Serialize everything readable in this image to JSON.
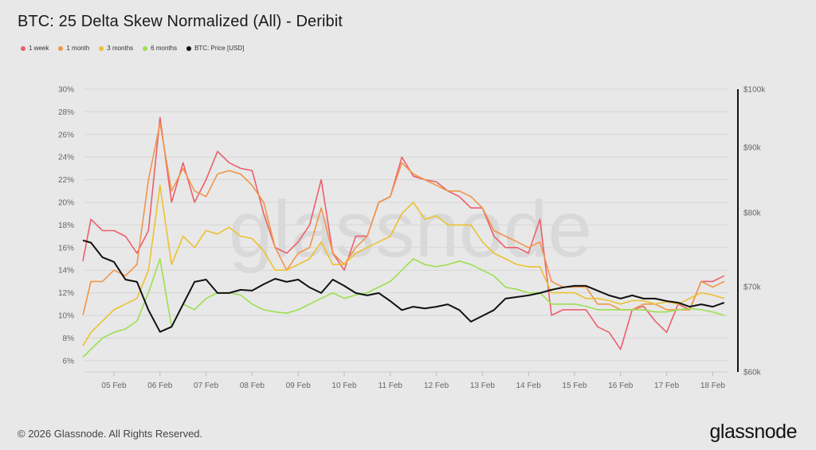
{
  "title": "BTC: 25 Delta Skew Normalized (All) - Deribit",
  "footer": "© 2026 Glassnode. All Rights Reserved.",
  "brand": "glassnode",
  "watermark": "glassnode",
  "chart_data": {
    "type": "line",
    "title": "BTC: 25 Delta Skew Normalized (All) - Deribit",
    "legend_position": "top-left",
    "grid": true,
    "x_tick_labels": [
      "05 Feb",
      "06 Feb",
      "07 Feb",
      "08 Feb",
      "09 Feb",
      "10 Feb",
      "11 Feb",
      "12 Feb",
      "13 Feb",
      "14 Feb",
      "15 Feb",
      "16 Feb",
      "17 Feb",
      "18 Feb"
    ],
    "y_left": {
      "ylim": [
        5,
        30
      ],
      "ticks": [
        6,
        8,
        10,
        12,
        14,
        16,
        18,
        20,
        22,
        24,
        26,
        28,
        30
      ],
      "tick_labels": [
        "6%",
        "8%",
        "10%",
        "12%",
        "14%",
        "16%",
        "18%",
        "20%",
        "22%",
        "24%",
        "26%",
        "28%",
        "30%"
      ]
    },
    "y_right": {
      "scale": "log",
      "ylim": [
        60,
        100
      ],
      "ticks": [
        60,
        70,
        80,
        90,
        100
      ],
      "tick_labels": [
        "$60k",
        "$70k",
        "$80k",
        "$90k",
        "$100k"
      ]
    },
    "x": [
      "02-04 06:00",
      "02-04 12:00",
      "02-04 18:00",
      "02-05 00:00",
      "02-05 06:00",
      "02-05 12:00",
      "02-05 18:00",
      "02-06 00:00",
      "02-06 06:00",
      "02-06 12:00",
      "02-06 18:00",
      "02-07 00:00",
      "02-07 06:00",
      "02-07 12:00",
      "02-07 18:00",
      "02-08 00:00",
      "02-08 06:00",
      "02-08 12:00",
      "02-08 18:00",
      "02-09 00:00",
      "02-09 06:00",
      "02-09 12:00",
      "02-09 18:00",
      "02-10 00:00",
      "02-10 06:00",
      "02-10 12:00",
      "02-10 18:00",
      "02-11 00:00",
      "02-11 06:00",
      "02-11 12:00",
      "02-11 18:00",
      "02-12 00:00",
      "02-12 06:00",
      "02-12 12:00",
      "02-12 18:00",
      "02-13 00:00",
      "02-13 06:00",
      "02-13 12:00",
      "02-13 18:00",
      "02-14 00:00",
      "02-14 06:00",
      "02-14 12:00",
      "02-14 18:00",
      "02-15 00:00",
      "02-15 06:00",
      "02-15 12:00",
      "02-15 18:00",
      "02-16 00:00",
      "02-16 06:00",
      "02-16 12:00",
      "02-16 18:00",
      "02-17 00:00",
      "02-17 06:00",
      "02-17 12:00",
      "02-17 18:00",
      "02-18 00:00",
      "02-18 06:00"
    ],
    "series": [
      {
        "name": "1 week",
        "color": "#ec5f6e",
        "axis": "left",
        "values": [
          14.8,
          18.5,
          17.5,
          17.5,
          17.0,
          15.5,
          17.5,
          27.5,
          20.0,
          23.5,
          20.0,
          22.0,
          24.5,
          23.5,
          23.0,
          22.8,
          19.0,
          16.0,
          15.5,
          16.5,
          18.0,
          22.0,
          15.5,
          14.0,
          17.0,
          17.0,
          20.0,
          20.5,
          24.0,
          22.3,
          22.0,
          21.8,
          21.0,
          20.5,
          19.5,
          19.5,
          17.0,
          16.0,
          16.0,
          15.5,
          18.5,
          10.0,
          10.5,
          10.5,
          10.5,
          9.0,
          8.5,
          7.0,
          10.5,
          10.8,
          9.5,
          8.5,
          11.0,
          10.5,
          13.0,
          13.0,
          13.5
        ]
      },
      {
        "name": "1 month",
        "color": "#f0954a",
        "axis": "left",
        "values": [
          10.0,
          13.0,
          13.0,
          14.0,
          13.5,
          14.5,
          22.0,
          27.0,
          21.0,
          23.0,
          21.0,
          20.5,
          22.5,
          22.8,
          22.5,
          21.5,
          20.0,
          16.0,
          14.0,
          15.5,
          16.0,
          19.5,
          15.5,
          14.5,
          16.0,
          17.0,
          20.0,
          20.5,
          23.5,
          22.5,
          22.0,
          21.5,
          21.0,
          21.0,
          20.5,
          19.5,
          17.5,
          17.0,
          16.5,
          16.0,
          16.5,
          13.0,
          12.5,
          12.5,
          12.5,
          11.0,
          11.0,
          10.5,
          10.5,
          11.0,
          11.0,
          10.5,
          10.5,
          10.5,
          13.0,
          12.5,
          13.0
        ]
      },
      {
        "name": "3 months",
        "color": "#ecc12f",
        "axis": "left",
        "values": [
          7.3,
          8.5,
          9.5,
          10.5,
          11.0,
          11.5,
          14.0,
          21.5,
          14.5,
          17.0,
          16.0,
          17.5,
          17.2,
          17.8,
          17.0,
          16.8,
          15.7,
          14.0,
          14.0,
          14.5,
          15.0,
          16.5,
          14.5,
          14.5,
          15.5,
          16.0,
          16.5,
          17.0,
          19.0,
          20.0,
          18.5,
          18.8,
          18.0,
          18.0,
          18.0,
          16.5,
          15.5,
          15.0,
          14.5,
          14.3,
          14.3,
          12.0,
          12.0,
          12.0,
          11.5,
          11.5,
          11.3,
          11.0,
          11.3,
          11.3,
          11.0,
          11.2,
          11.0,
          11.5,
          12.0,
          11.8,
          11.5
        ]
      },
      {
        "name": "6 months",
        "color": "#9be04f",
        "axis": "left",
        "values": [
          6.3,
          7.0,
          8.0,
          8.5,
          8.8,
          9.5,
          12.0,
          15.0,
          9.0,
          11.0,
          10.5,
          11.5,
          12.0,
          12.0,
          11.8,
          11.0,
          10.5,
          10.3,
          10.2,
          10.5,
          11.0,
          11.5,
          12.0,
          11.5,
          11.8,
          12.0,
          12.5,
          13.0,
          14.0,
          15.0,
          14.5,
          14.3,
          14.5,
          14.8,
          14.5,
          14.0,
          13.5,
          12.5,
          12.3,
          12.0,
          12.0,
          11.0,
          11.0,
          11.0,
          10.8,
          10.5,
          10.5,
          10.5,
          10.5,
          10.5,
          10.3,
          10.3,
          10.5,
          10.6,
          10.5,
          10.3,
          10.0
        ]
      },
      {
        "name": "BTC: Price [USD]",
        "color": "#111111",
        "axis": "right",
        "values": [
          76.1,
          75.8,
          73.8,
          73.2,
          70.9,
          70.6,
          67.1,
          64.5,
          65.1,
          67.8,
          70.6,
          70.9,
          69.2,
          69.2,
          69.6,
          69.5,
          70.3,
          71.0,
          70.6,
          70.9,
          69.9,
          69.2,
          70.9,
          70.1,
          69.2,
          68.9,
          69.2,
          68.2,
          67.1,
          67.5,
          67.3,
          67.5,
          67.8,
          67.1,
          65.7,
          66.4,
          67.1,
          68.5,
          68.7,
          68.9,
          69.2,
          69.6,
          69.9,
          70.1,
          70.1,
          69.5,
          68.9,
          68.5,
          68.9,
          68.5,
          68.5,
          68.2,
          68.0,
          67.5,
          67.8,
          67.5,
          68.0
        ]
      }
    ]
  }
}
